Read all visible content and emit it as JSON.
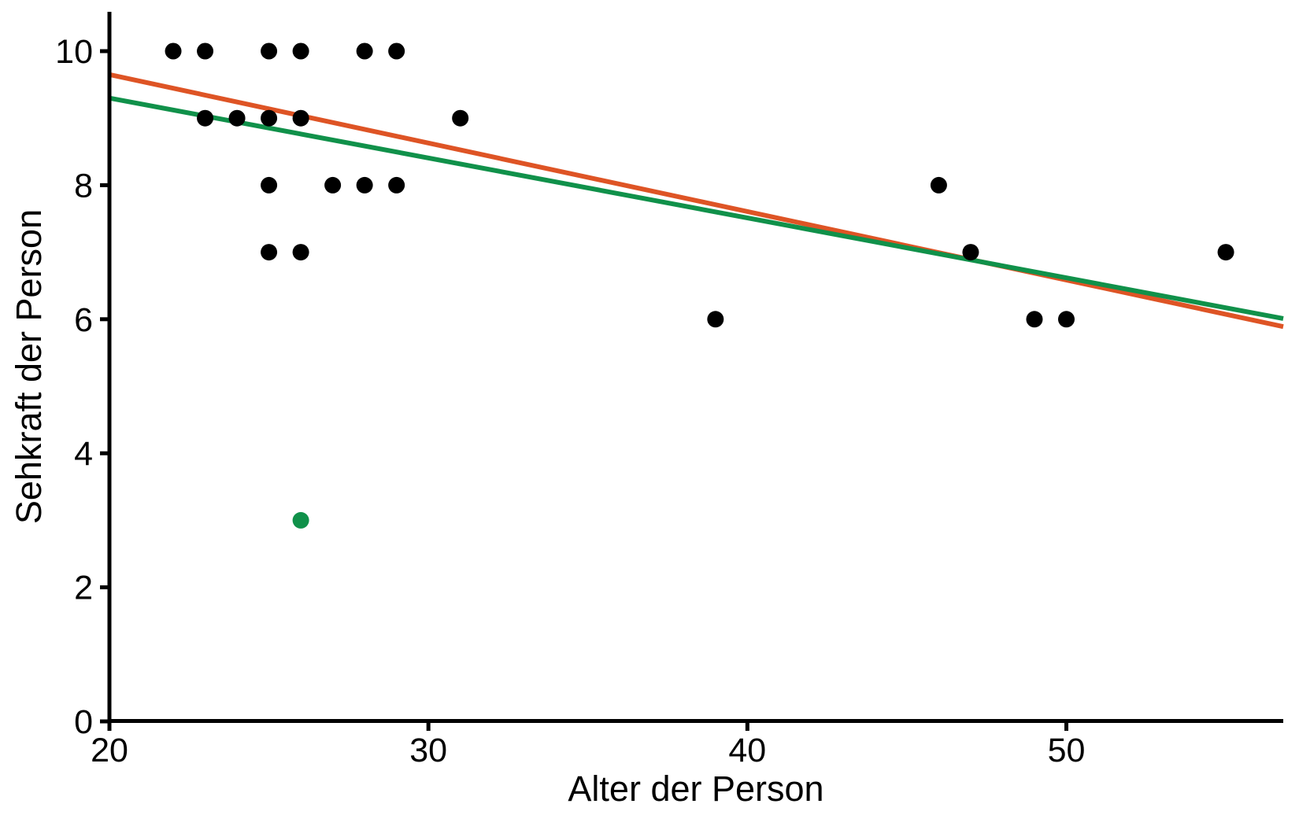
{
  "figure": {
    "background": "#FFFFFF",
    "axis_color": "#000000"
  },
  "chart_data": {
    "type": "scatter",
    "title": "",
    "xlabel": "Alter der Person",
    "ylabel": "Sehkraft der Person",
    "xlim": [
      20,
      56.8
    ],
    "ylim": [
      0,
      10.59
    ],
    "x_tick_values": [
      20,
      30,
      40,
      50
    ],
    "x_tick_labels": [
      "20",
      "30",
      "40",
      "50"
    ],
    "y_tick_values": [
      0,
      2,
      4,
      6,
      8,
      10
    ],
    "y_tick_labels": [
      "0",
      "2",
      "4",
      "6",
      "8",
      "10"
    ],
    "grid": false,
    "legend": false,
    "series": [
      {
        "name": "data-points",
        "color": "#000000",
        "marker": "circle",
        "points": [
          [
            22,
            10
          ],
          [
            23,
            10
          ],
          [
            25,
            10
          ],
          [
            26,
            10
          ],
          [
            28,
            10
          ],
          [
            29,
            10
          ],
          [
            23,
            9
          ],
          [
            24,
            9
          ],
          [
            25,
            9
          ],
          [
            26,
            9
          ],
          [
            31,
            9
          ],
          [
            25,
            8
          ],
          [
            27,
            8
          ],
          [
            28,
            8
          ],
          [
            29,
            8
          ],
          [
            46,
            8
          ],
          [
            25,
            7
          ],
          [
            26,
            7
          ],
          [
            47,
            7
          ],
          [
            55,
            7
          ],
          [
            39,
            6
          ],
          [
            49,
            6
          ],
          [
            50,
            6
          ]
        ]
      },
      {
        "name": "outlier-point",
        "color": "#10914A",
        "marker": "circle",
        "points": [
          [
            26,
            3
          ]
        ]
      }
    ],
    "trend_lines": [
      {
        "name": "trend-line-orange",
        "color": "#DE5425",
        "start": [
          20,
          9.65
        ],
        "end": [
          56.8,
          5.89
        ]
      },
      {
        "name": "trend-line-green",
        "color": "#10914A",
        "start": [
          20,
          9.3
        ],
        "end": [
          56.8,
          6.01
        ]
      }
    ]
  }
}
